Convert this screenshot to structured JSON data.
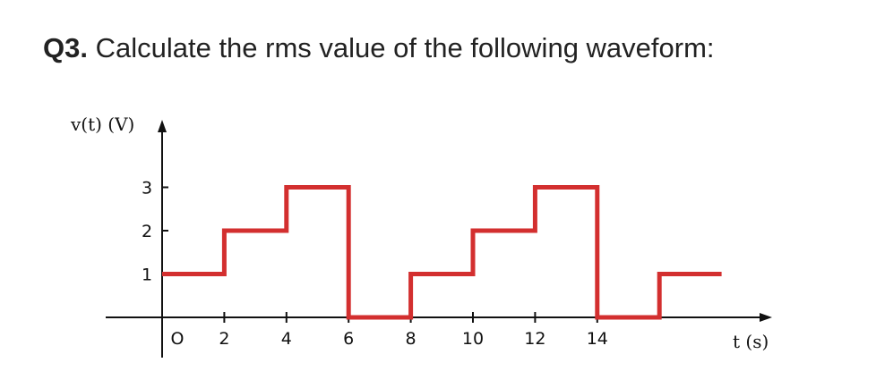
{
  "question": {
    "number": "Q3.",
    "text": "Calculate the rms value of the following waveform:"
  },
  "colors": {
    "waveform": "#d32f2f",
    "axis": "#111111"
  },
  "chart_data": {
    "type": "line",
    "step": true,
    "title": "",
    "ylabel": "v(t) (V)",
    "xlabel": "t (s)",
    "xticks": [
      0,
      2,
      4,
      6,
      8,
      10,
      12,
      14
    ],
    "xtick_labels": [
      "O",
      "2",
      "4",
      "6",
      "8",
      "10",
      "12",
      "14"
    ],
    "yticks": [
      1,
      2,
      3
    ],
    "ytick_labels": [
      "1",
      "2",
      "3"
    ],
    "xlim": [
      0,
      18
    ],
    "ylim": [
      0,
      3.6
    ],
    "series": [
      {
        "x": [
          0,
          2,
          2,
          4,
          4,
          6,
          6,
          8,
          8,
          10,
          10,
          12,
          12,
          14,
          14,
          16,
          16,
          18
        ],
        "y": [
          1,
          1,
          2,
          2,
          3,
          3,
          0,
          0,
          1,
          1,
          2,
          2,
          3,
          3,
          0,
          0,
          1,
          1
        ]
      }
    ],
    "grid": false,
    "legend": "none"
  }
}
